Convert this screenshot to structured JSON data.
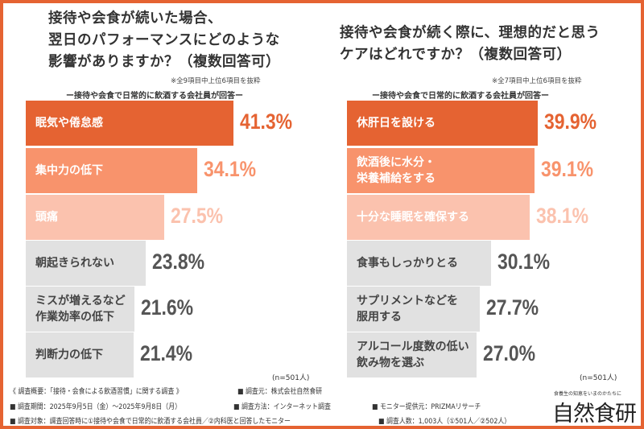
{
  "colors": {
    "frame": "#e56332",
    "rank1": "#e56332",
    "rank2": "#f8936c",
    "rank3": "#fbc2ae",
    "other": "#e1e1e1",
    "other_text": "#555555"
  },
  "chart_data": [
    {
      "type": "bar",
      "orientation": "horizontal",
      "title": [
        "接待や会食が続いた場合、",
        "翌日のパフォーマンスにどのような",
        "影響がありますか？（複数回答可）"
      ],
      "note": "※全9項目中上位6項目を抜粋",
      "subtitle": "ー接待や会食で日常的に飲酒する会社員が回答ー",
      "categories": [
        "眠気や倦怠感",
        "集中力の低下",
        "頭痛",
        "朝起きられない",
        "ミスが増えるなど\n作業効率の低下",
        "判断力の低下"
      ],
      "values": [
        41.3,
        34.1,
        27.5,
        23.8,
        21.6,
        21.4
      ],
      "labels": [
        "41.3%",
        "34.1%",
        "27.5%",
        "23.8%",
        "21.6%",
        "21.4%"
      ],
      "unit": "%",
      "sample": "(n=501人)"
    },
    {
      "type": "bar",
      "orientation": "horizontal",
      "title": [
        "接待や会食が続く際に、理想的だと思う",
        "ケアはどれですか？（複数回答可）"
      ],
      "note": "※全7項目中上位6項目を抜粋",
      "subtitle": "ー接待や会食で日常的に飲酒する会社員が回答ー",
      "categories": [
        "休肝日を設ける",
        "飲酒後に水分・\n栄養補給をする",
        "十分な睡眠を確保する",
        "食事もしっかりとる",
        "サプリメントなどを\n服用する",
        "アルコール度数の低い\n飲み物を選ぶ"
      ],
      "values": [
        39.9,
        39.1,
        38.1,
        30.1,
        27.7,
        27.0
      ],
      "labels": [
        "39.9%",
        "39.1%",
        "38.1%",
        "30.1%",
        "27.7%",
        "27.0%"
      ],
      "unit": "%",
      "sample": "(n=501人)"
    }
  ],
  "footer": {
    "overview": "《 調査概要：「接待・会食による飲酒習慣」に関する調査 》",
    "source": "■ 調査元：株式会社自然食研",
    "period": "■ 調査期間：2025年9月5日（金）～2025年9月8日（月）",
    "method": "■ 調査方法：インターネット調査",
    "provider": "■ モニター提供元：PRIZMAリサーチ",
    "target": "■ 調査対象：調査回答時に①接待や会食で日常的に飲酒する会社員／②内科医と回答したモニター",
    "count": "■ 調査人数：1,003人（①501人／②502人）"
  },
  "logo": {
    "tagline": "食養生の知恵をいまのかたちに",
    "name": "自然食研"
  }
}
